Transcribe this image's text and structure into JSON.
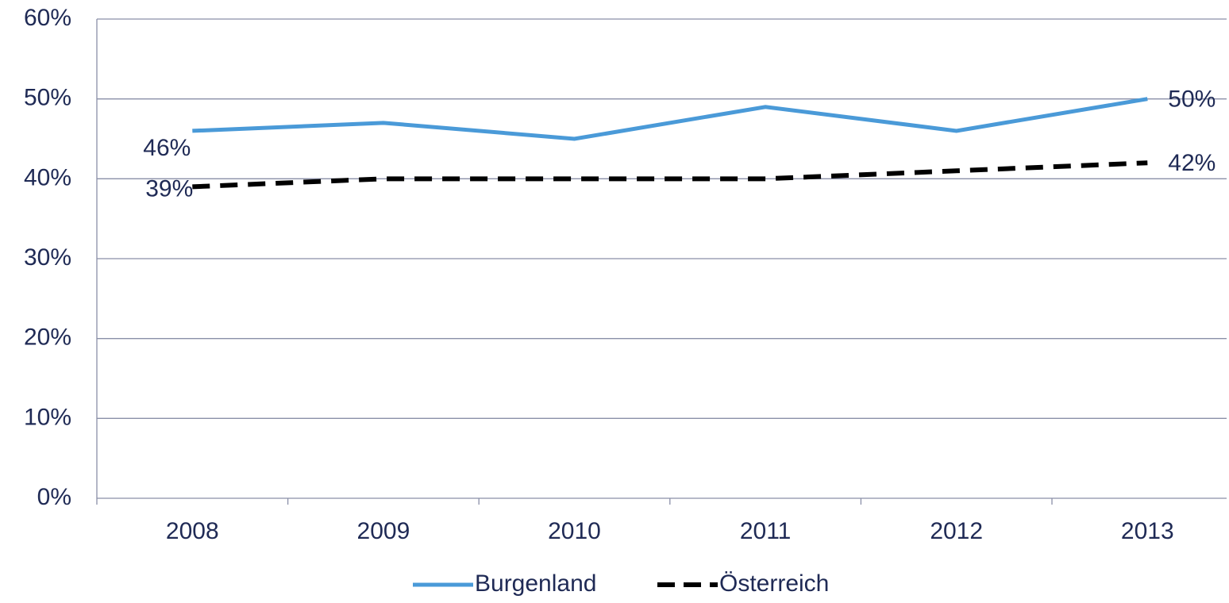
{
  "chart_data": {
    "type": "line",
    "categories": [
      "2008",
      "2009",
      "2010",
      "2011",
      "2012",
      "2013"
    ],
    "series": [
      {
        "name": "Burgenland",
        "color": "#4a9ad8",
        "style": "solid",
        "values": [
          46,
          47,
          45,
          49,
          46,
          50
        ],
        "value_labels": [
          "46%",
          null,
          null,
          null,
          null,
          "50%"
        ]
      },
      {
        "name": "Österreich",
        "color": "#000000",
        "style": "dashed",
        "values": [
          39,
          40,
          40,
          40,
          41,
          42
        ],
        "value_labels": [
          "39%",
          null,
          null,
          null,
          null,
          "42%"
        ]
      }
    ],
    "ylim": [
      0,
      60
    ],
    "yticks": [
      {
        "value": 0,
        "label": "0%"
      },
      {
        "value": 10,
        "label": "10%"
      },
      {
        "value": 20,
        "label": "20%"
      },
      {
        "value": 30,
        "label": "30%"
      },
      {
        "value": 40,
        "label": "40%"
      },
      {
        "value": 50,
        "label": "50%"
      },
      {
        "value": 60,
        "label": "60%"
      }
    ],
    "grid": true,
    "legend": "bottom"
  }
}
